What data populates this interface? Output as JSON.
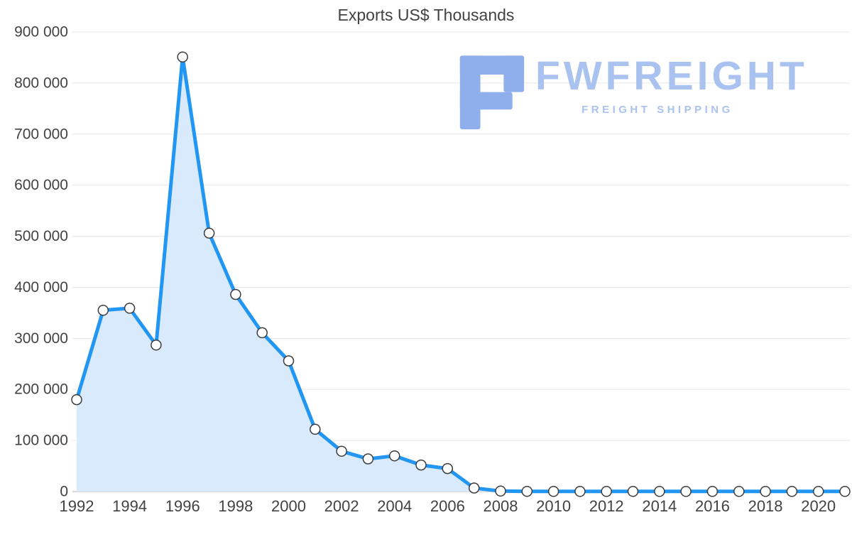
{
  "chart_data": {
    "type": "area",
    "title": "Exports US$ Thousands",
    "x": [
      1992,
      1993,
      1994,
      1995,
      1996,
      1997,
      1998,
      1999,
      2000,
      2001,
      2002,
      2003,
      2004,
      2005,
      2006,
      2007,
      2008,
      2009,
      2010,
      2011,
      2012,
      2013,
      2014,
      2015,
      2016,
      2017,
      2018,
      2019,
      2020,
      2021
    ],
    "values": [
      180000,
      355000,
      359000,
      287000,
      851000,
      506000,
      386000,
      311000,
      256000,
      122000,
      79000,
      64000,
      70000,
      52000,
      45000,
      7000,
      1000,
      400,
      300,
      300,
      300,
      300,
      300,
      300,
      300,
      300,
      300,
      300,
      300,
      300
    ],
    "xtick_years": [
      1992,
      1994,
      1996,
      1998,
      2000,
      2002,
      2004,
      2006,
      2008,
      2010,
      2012,
      2014,
      2016,
      2018,
      2020
    ],
    "ylim": [
      0,
      900000
    ],
    "ytick_step": 100000,
    "grid": true,
    "legend": false,
    "xlabel": "",
    "ylabel": "",
    "line_color": "#2196f3",
    "fill_color": "#d9eafd",
    "marker": {
      "fill": "#ffffff",
      "stroke": "#3c3c3c",
      "radius": 7
    }
  },
  "axis": {
    "label_color": "#424242",
    "grid_color": "#e7e7e7",
    "zero_line_color": "#cccccc",
    "y_label_font_size": 21,
    "x_label_font_size": 22
  },
  "watermark": {
    "name": "FWFREIGHT",
    "tagline": "FREIGHT SHIPPING",
    "text_color": "#a9c2f0",
    "icon_color": "#8fafec"
  }
}
